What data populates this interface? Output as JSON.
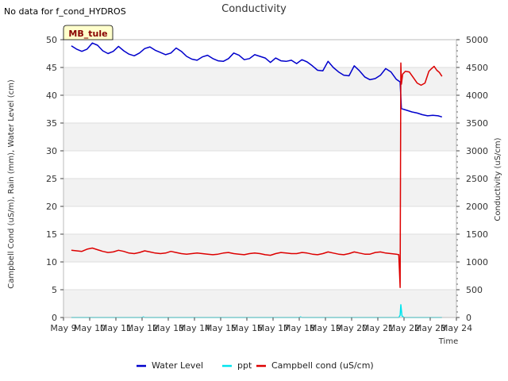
{
  "page_note": "No data for f_cond_HYDROS",
  "chart_data": {
    "type": "line",
    "title": "Conductivity",
    "site_label": "MB_tule",
    "xlabel": "Time",
    "ylabel_left": "Campbell Cond (uS/m), Rain (mm), Water Level (cm)",
    "ylabel_right": "Conductivity (uS/cm)",
    "xlim": [
      9,
      24
    ],
    "ylim_left": [
      0,
      50
    ],
    "ylim_right": [
      0,
      5000
    ],
    "x_ticks": [
      9,
      10,
      11,
      12,
      13,
      14,
      15,
      16,
      17,
      18,
      19,
      20,
      21,
      22,
      23,
      24
    ],
    "x_tick_labels": [
      "May 9",
      "May 10",
      "May 11",
      "May 12",
      "May 13",
      "May 14",
      "May 15",
      "May 16",
      "May 17",
      "May 18",
      "May 19",
      "May 20",
      "May 21",
      "May 22",
      "May 23",
      "May 24"
    ],
    "y_ticks_left": [
      0,
      5,
      10,
      15,
      20,
      25,
      30,
      35,
      40,
      45,
      50
    ],
    "y_ticks_right": [
      0,
      500,
      1000,
      1500,
      2000,
      2500,
      3000,
      3500,
      4000,
      4500,
      5000
    ],
    "legend": [
      "Water Level",
      "ppt",
      "Campbell cond (uS/cm)"
    ],
    "series": [
      {
        "name": "Water Level",
        "color": "#0000cc",
        "x": [
          9.3,
          9.5,
          9.7,
          9.9,
          10.1,
          10.3,
          10.5,
          10.7,
          10.9,
          11.1,
          11.3,
          11.5,
          11.7,
          11.9,
          12.1,
          12.3,
          12.5,
          12.7,
          12.9,
          13.1,
          13.3,
          13.5,
          13.7,
          13.9,
          14.1,
          14.3,
          14.5,
          14.7,
          14.9,
          15.1,
          15.3,
          15.5,
          15.7,
          15.9,
          16.1,
          16.3,
          16.5,
          16.7,
          16.9,
          17.1,
          17.3,
          17.5,
          17.7,
          17.9,
          18.1,
          18.3,
          18.5,
          18.7,
          18.9,
          19.1,
          19.3,
          19.5,
          19.7,
          19.9,
          20.1,
          20.3,
          20.5,
          20.7,
          20.9,
          21.1,
          21.3,
          21.5,
          21.7,
          21.85,
          21.9,
          22.1,
          22.3,
          22.5,
          22.7,
          22.9,
          23.1,
          23.3,
          23.45
        ],
        "y": [
          48.9,
          48.3,
          47.9,
          48.3,
          49.4,
          49.0,
          48.0,
          47.5,
          47.9,
          48.8,
          48.0,
          47.4,
          47.1,
          47.6,
          48.4,
          48.7,
          48.1,
          47.7,
          47.3,
          47.6,
          48.5,
          47.9,
          47.0,
          46.5,
          46.3,
          46.9,
          47.2,
          46.6,
          46.2,
          46.1,
          46.6,
          47.6,
          47.2,
          46.4,
          46.6,
          47.3,
          47.0,
          46.7,
          45.9,
          46.7,
          46.2,
          46.1,
          46.3,
          45.7,
          46.4,
          46.0,
          45.3,
          44.5,
          44.4,
          46.1,
          45.0,
          44.2,
          43.6,
          43.5,
          45.3,
          44.4,
          43.3,
          42.8,
          43.0,
          43.6,
          44.8,
          44.2,
          42.9,
          42.4,
          37.6,
          37.3,
          37.0,
          36.8,
          36.5,
          36.3,
          36.4,
          36.3,
          36.1
        ]
      },
      {
        "name": "ppt",
        "color": "#00e5ee",
        "x": [
          9.3,
          12.0,
          12.05,
          12.1,
          15.0,
          18.0,
          18.05,
          18.1,
          21.8,
          21.85,
          21.88,
          21.92,
          22.0,
          23.45
        ],
        "y": [
          0,
          0,
          0.1,
          0,
          0,
          0,
          0.1,
          0,
          0,
          0.4,
          2.3,
          0.3,
          0,
          0
        ]
      },
      {
        "name": "Campbell cond (uS/cm)",
        "color": "#dd0000",
        "x": [
          9.3,
          9.5,
          9.7,
          9.9,
          10.1,
          10.3,
          10.5,
          10.7,
          10.9,
          11.1,
          11.3,
          11.5,
          11.7,
          11.9,
          12.1,
          12.3,
          12.5,
          12.7,
          12.9,
          13.1,
          13.3,
          13.5,
          13.7,
          13.9,
          14.1,
          14.3,
          14.5,
          14.7,
          14.9,
          15.1,
          15.3,
          15.5,
          15.7,
          15.9,
          16.1,
          16.3,
          16.5,
          16.7,
          16.9,
          17.1,
          17.3,
          17.5,
          17.7,
          17.9,
          18.1,
          18.3,
          18.5,
          18.7,
          18.9,
          19.1,
          19.3,
          19.5,
          19.7,
          19.9,
          20.1,
          20.3,
          20.5,
          20.7,
          20.9,
          21.1,
          21.3,
          21.5,
          21.7,
          21.8,
          21.85,
          21.88,
          21.9,
          21.95,
          22.05,
          22.2,
          22.35,
          22.5,
          22.65,
          22.8,
          22.95,
          23.05,
          23.15,
          23.25,
          23.35,
          23.45
        ],
        "y": [
          12.1,
          12.0,
          11.9,
          12.3,
          12.5,
          12.2,
          11.9,
          11.7,
          11.8,
          12.1,
          11.9,
          11.6,
          11.5,
          11.7,
          12.0,
          11.8,
          11.6,
          11.5,
          11.6,
          11.9,
          11.7,
          11.5,
          11.4,
          11.5,
          11.6,
          11.5,
          11.4,
          11.3,
          11.4,
          11.6,
          11.7,
          11.5,
          11.4,
          11.3,
          11.5,
          11.6,
          11.5,
          11.3,
          11.2,
          11.5,
          11.7,
          11.6,
          11.5,
          11.5,
          11.7,
          11.6,
          11.4,
          11.3,
          11.5,
          11.8,
          11.6,
          11.4,
          11.3,
          11.5,
          11.8,
          11.6,
          11.4,
          11.4,
          11.7,
          11.8,
          11.6,
          11.5,
          11.4,
          11.3,
          5.4,
          45.8,
          42.0,
          43.8,
          44.3,
          44.2,
          43.2,
          42.2,
          41.8,
          42.2,
          44.3,
          44.8,
          45.2,
          44.5,
          44.1,
          43.4
        ]
      }
    ]
  }
}
